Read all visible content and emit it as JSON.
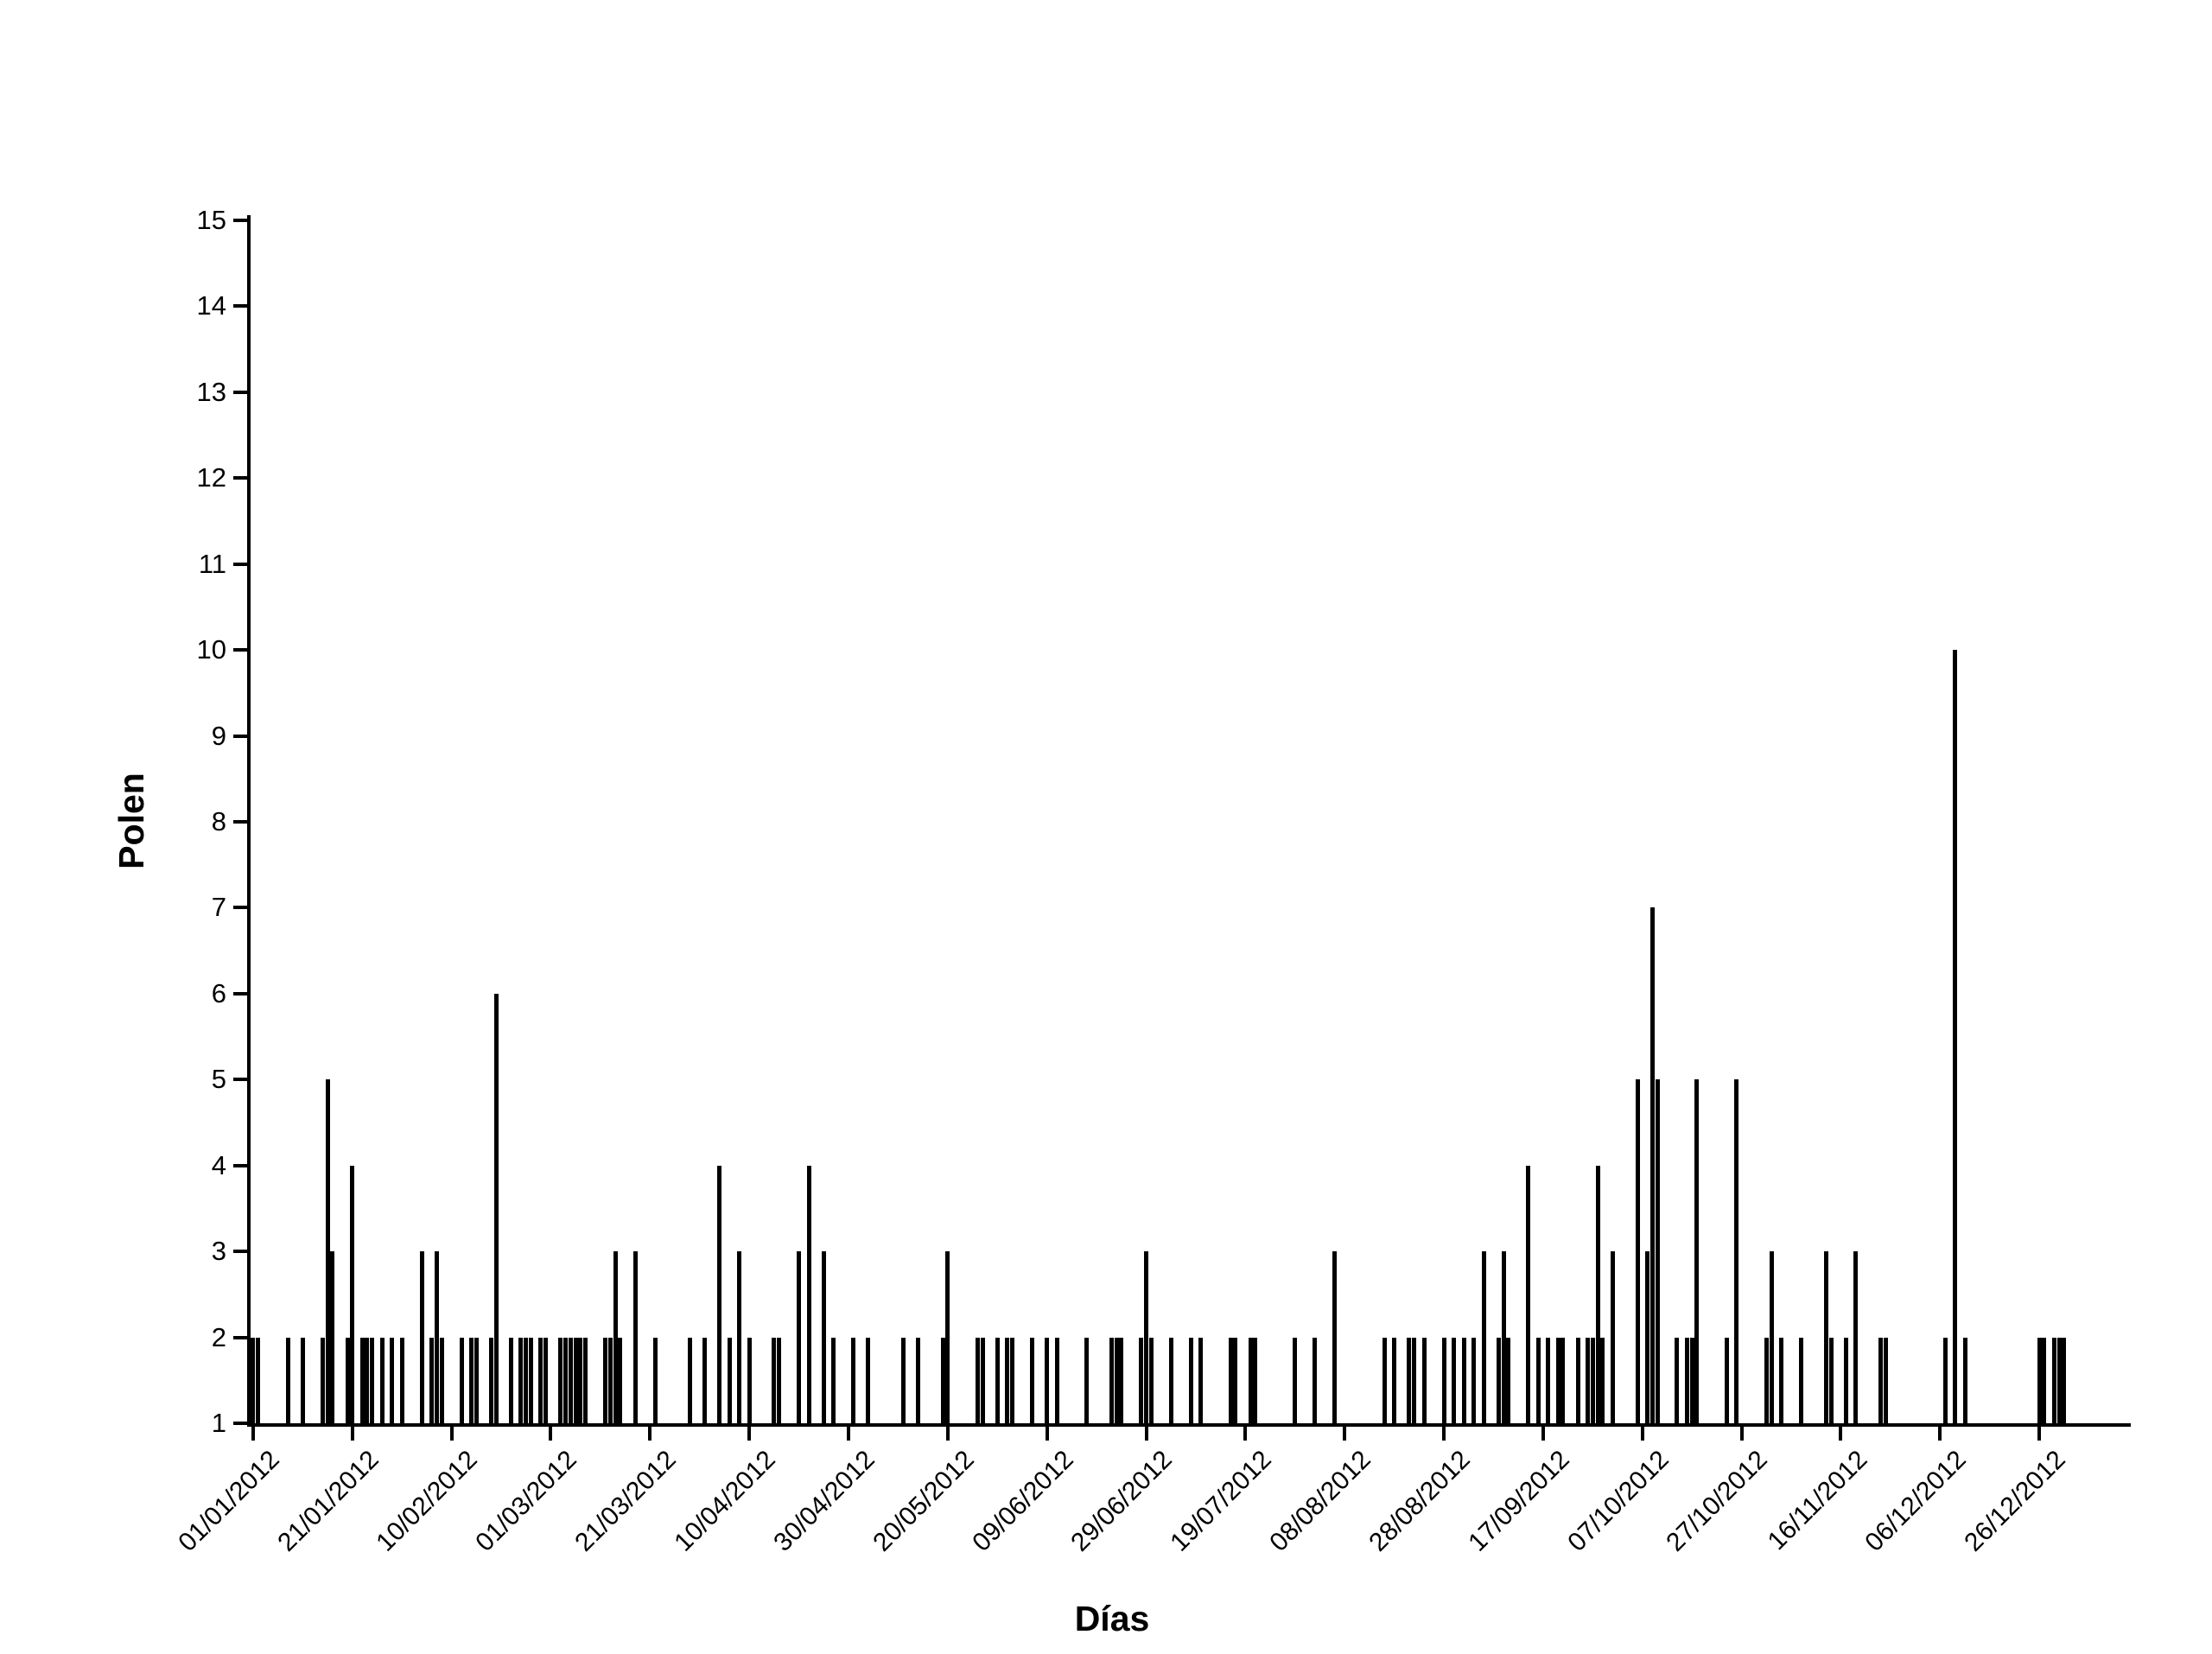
{
  "chart_data": {
    "type": "bar",
    "title": "",
    "xlabel": "Días",
    "ylabel": "Polen",
    "ylim": [
      1,
      15
    ],
    "grid": false,
    "legend": "none",
    "bar_color": "#000000",
    "background_color": "#ffffff",
    "yticks": [
      1,
      2,
      3,
      4,
      5,
      6,
      7,
      8,
      9,
      10,
      11,
      12,
      13,
      14,
      15
    ],
    "xticks": [
      {
        "day": 1,
        "label": "01/01/2012"
      },
      {
        "day": 21,
        "label": "21/01/2012"
      },
      {
        "day": 41,
        "label": "10/02/2012"
      },
      {
        "day": 61,
        "label": "01/03/2012"
      },
      {
        "day": 81,
        "label": "21/03/2012"
      },
      {
        "day": 101,
        "label": "10/04/2012"
      },
      {
        "day": 121,
        "label": "30/04/2012"
      },
      {
        "day": 141,
        "label": "20/05/2012"
      },
      {
        "day": 161,
        "label": "09/06/2012"
      },
      {
        "day": 181,
        "label": "29/06/2012"
      },
      {
        "day": 201,
        "label": "19/07/2012"
      },
      {
        "day": 221,
        "label": "08/08/2012"
      },
      {
        "day": 241,
        "label": "28/08/2012"
      },
      {
        "day": 261,
        "label": "17/09/2012"
      },
      {
        "day": 281,
        "label": "07/10/2012"
      },
      {
        "day": 301,
        "label": "27/10/2012"
      },
      {
        "day": 321,
        "label": "16/11/2012"
      },
      {
        "day": 341,
        "label": "06/12/2012"
      },
      {
        "day": 361,
        "label": "26/12/2012"
      }
    ],
    "x_domain_days": [
      1,
      366
    ],
    "points": [
      {
        "date": "01/01/2012",
        "day": 1,
        "value": 2
      },
      {
        "date": "02/01/2012",
        "day": 2,
        "value": 2
      },
      {
        "date": "08/01/2012",
        "day": 8,
        "value": 2
      },
      {
        "date": "11/01/2012",
        "day": 11,
        "value": 2
      },
      {
        "date": "15/01/2012",
        "day": 15,
        "value": 2
      },
      {
        "date": "16/01/2012",
        "day": 16,
        "value": 5
      },
      {
        "date": "17/01/2012",
        "day": 17,
        "value": 3
      },
      {
        "date": "20/01/2012",
        "day": 20,
        "value": 2
      },
      {
        "date": "21/01/2012",
        "day": 21,
        "value": 4
      },
      {
        "date": "23/01/2012",
        "day": 23,
        "value": 2
      },
      {
        "date": "24/01/2012",
        "day": 24,
        "value": 2
      },
      {
        "date": "25/01/2012",
        "day": 25,
        "value": 2
      },
      {
        "date": "27/01/2012",
        "day": 27,
        "value": 2
      },
      {
        "date": "29/01/2012",
        "day": 29,
        "value": 2
      },
      {
        "date": "31/01/2012",
        "day": 31,
        "value": 2
      },
      {
        "date": "04/02/2012",
        "day": 35,
        "value": 3
      },
      {
        "date": "06/02/2012",
        "day": 37,
        "value": 2
      },
      {
        "date": "07/02/2012",
        "day": 38,
        "value": 3
      },
      {
        "date": "08/02/2012",
        "day": 39,
        "value": 2
      },
      {
        "date": "12/02/2012",
        "day": 43,
        "value": 2
      },
      {
        "date": "14/02/2012",
        "day": 45,
        "value": 2
      },
      {
        "date": "15/02/2012",
        "day": 46,
        "value": 2
      },
      {
        "date": "18/02/2012",
        "day": 49,
        "value": 2
      },
      {
        "date": "19/02/2012",
        "day": 50,
        "value": 6
      },
      {
        "date": "22/02/2012",
        "day": 53,
        "value": 2
      },
      {
        "date": "24/02/2012",
        "day": 55,
        "value": 2
      },
      {
        "date": "25/02/2012",
        "day": 56,
        "value": 2
      },
      {
        "date": "26/02/2012",
        "day": 57,
        "value": 2
      },
      {
        "date": "28/02/2012",
        "day": 59,
        "value": 2
      },
      {
        "date": "29/02/2012",
        "day": 60,
        "value": 2
      },
      {
        "date": "03/03/2012",
        "day": 63,
        "value": 2
      },
      {
        "date": "04/03/2012",
        "day": 64,
        "value": 2
      },
      {
        "date": "05/03/2012",
        "day": 65,
        "value": 2
      },
      {
        "date": "06/03/2012",
        "day": 66,
        "value": 2
      },
      {
        "date": "07/03/2012",
        "day": 67,
        "value": 2
      },
      {
        "date": "08/03/2012",
        "day": 68,
        "value": 2
      },
      {
        "date": "12/03/2012",
        "day": 72,
        "value": 2
      },
      {
        "date": "13/03/2012",
        "day": 73,
        "value": 2
      },
      {
        "date": "14/03/2012",
        "day": 74,
        "value": 3
      },
      {
        "date": "15/03/2012",
        "day": 75,
        "value": 2
      },
      {
        "date": "18/03/2012",
        "day": 78,
        "value": 3
      },
      {
        "date": "22/03/2012",
        "day": 82,
        "value": 2
      },
      {
        "date": "29/03/2012",
        "day": 89,
        "value": 2
      },
      {
        "date": "01/04/2012",
        "day": 92,
        "value": 2
      },
      {
        "date": "04/04/2012",
        "day": 95,
        "value": 4
      },
      {
        "date": "06/04/2012",
        "day": 97,
        "value": 2
      },
      {
        "date": "08/04/2012",
        "day": 99,
        "value": 3
      },
      {
        "date": "10/04/2012",
        "day": 101,
        "value": 2
      },
      {
        "date": "15/04/2012",
        "day": 106,
        "value": 2
      },
      {
        "date": "16/04/2012",
        "day": 107,
        "value": 2
      },
      {
        "date": "20/04/2012",
        "day": 111,
        "value": 3
      },
      {
        "date": "22/04/2012",
        "day": 113,
        "value": 4
      },
      {
        "date": "25/04/2012",
        "day": 116,
        "value": 3
      },
      {
        "date": "27/04/2012",
        "day": 118,
        "value": 2
      },
      {
        "date": "01/05/2012",
        "day": 122,
        "value": 2
      },
      {
        "date": "04/05/2012",
        "day": 125,
        "value": 2
      },
      {
        "date": "11/05/2012",
        "day": 132,
        "value": 2
      },
      {
        "date": "14/05/2012",
        "day": 135,
        "value": 2
      },
      {
        "date": "19/05/2012",
        "day": 140,
        "value": 2
      },
      {
        "date": "20/05/2012",
        "day": 141,
        "value": 3
      },
      {
        "date": "26/05/2012",
        "day": 147,
        "value": 2
      },
      {
        "date": "27/05/2012",
        "day": 148,
        "value": 2
      },
      {
        "date": "30/05/2012",
        "day": 151,
        "value": 2
      },
      {
        "date": "01/06/2012",
        "day": 153,
        "value": 2
      },
      {
        "date": "02/06/2012",
        "day": 154,
        "value": 2
      },
      {
        "date": "06/06/2012",
        "day": 158,
        "value": 2
      },
      {
        "date": "09/06/2012",
        "day": 161,
        "value": 2
      },
      {
        "date": "11/06/2012",
        "day": 163,
        "value": 2
      },
      {
        "date": "17/06/2012",
        "day": 169,
        "value": 2
      },
      {
        "date": "22/06/2012",
        "day": 174,
        "value": 2
      },
      {
        "date": "23/06/2012",
        "day": 175,
        "value": 2
      },
      {
        "date": "24/06/2012",
        "day": 176,
        "value": 2
      },
      {
        "date": "28/06/2012",
        "day": 180,
        "value": 2
      },
      {
        "date": "29/06/2012",
        "day": 181,
        "value": 3
      },
      {
        "date": "30/06/2012",
        "day": 182,
        "value": 2
      },
      {
        "date": "04/07/2012",
        "day": 186,
        "value": 2
      },
      {
        "date": "08/07/2012",
        "day": 190,
        "value": 2
      },
      {
        "date": "10/07/2012",
        "day": 192,
        "value": 2
      },
      {
        "date": "16/07/2012",
        "day": 198,
        "value": 2
      },
      {
        "date": "17/07/2012",
        "day": 199,
        "value": 2
      },
      {
        "date": "20/07/2012",
        "day": 202,
        "value": 2
      },
      {
        "date": "21/07/2012",
        "day": 203,
        "value": 2
      },
      {
        "date": "29/07/2012",
        "day": 211,
        "value": 2
      },
      {
        "date": "02/08/2012",
        "day": 215,
        "value": 2
      },
      {
        "date": "06/08/2012",
        "day": 219,
        "value": 3
      },
      {
        "date": "16/08/2012",
        "day": 229,
        "value": 2
      },
      {
        "date": "18/08/2012",
        "day": 231,
        "value": 2
      },
      {
        "date": "21/08/2012",
        "day": 234,
        "value": 2
      },
      {
        "date": "22/08/2012",
        "day": 235,
        "value": 2
      },
      {
        "date": "24/08/2012",
        "day": 237,
        "value": 2
      },
      {
        "date": "28/08/2012",
        "day": 241,
        "value": 2
      },
      {
        "date": "30/08/2012",
        "day": 243,
        "value": 2
      },
      {
        "date": "01/09/2012",
        "day": 245,
        "value": 2
      },
      {
        "date": "03/09/2012",
        "day": 247,
        "value": 2
      },
      {
        "date": "05/09/2012",
        "day": 249,
        "value": 3
      },
      {
        "date": "08/09/2012",
        "day": 252,
        "value": 2
      },
      {
        "date": "09/09/2012",
        "day": 253,
        "value": 3
      },
      {
        "date": "10/09/2012",
        "day": 254,
        "value": 2
      },
      {
        "date": "14/09/2012",
        "day": 258,
        "value": 4
      },
      {
        "date": "16/09/2012",
        "day": 260,
        "value": 2
      },
      {
        "date": "18/09/2012",
        "day": 262,
        "value": 2
      },
      {
        "date": "20/09/2012",
        "day": 264,
        "value": 2
      },
      {
        "date": "21/09/2012",
        "day": 265,
        "value": 2
      },
      {
        "date": "24/09/2012",
        "day": 268,
        "value": 2
      },
      {
        "date": "26/09/2012",
        "day": 270,
        "value": 2
      },
      {
        "date": "27/09/2012",
        "day": 271,
        "value": 2
      },
      {
        "date": "28/09/2012",
        "day": 272,
        "value": 4
      },
      {
        "date": "29/09/2012",
        "day": 273,
        "value": 2
      },
      {
        "date": "01/10/2012",
        "day": 275,
        "value": 3
      },
      {
        "date": "06/10/2012",
        "day": 280,
        "value": 5
      },
      {
        "date": "08/10/2012",
        "day": 282,
        "value": 3
      },
      {
        "date": "09/10/2012",
        "day": 283,
        "value": 7
      },
      {
        "date": "10/10/2012",
        "day": 284,
        "value": 5
      },
      {
        "date": "14/10/2012",
        "day": 288,
        "value": 2
      },
      {
        "date": "16/10/2012",
        "day": 290,
        "value": 2
      },
      {
        "date": "17/10/2012",
        "day": 291,
        "value": 2
      },
      {
        "date": "18/10/2012",
        "day": 292,
        "value": 5
      },
      {
        "date": "24/10/2012",
        "day": 298,
        "value": 2
      },
      {
        "date": "26/10/2012",
        "day": 300,
        "value": 5
      },
      {
        "date": "01/11/2012",
        "day": 306,
        "value": 2
      },
      {
        "date": "02/11/2012",
        "day": 307,
        "value": 3
      },
      {
        "date": "04/11/2012",
        "day": 309,
        "value": 2
      },
      {
        "date": "08/11/2012",
        "day": 313,
        "value": 2
      },
      {
        "date": "13/11/2012",
        "day": 318,
        "value": 3
      },
      {
        "date": "14/11/2012",
        "day": 319,
        "value": 2
      },
      {
        "date": "17/11/2012",
        "day": 322,
        "value": 2
      },
      {
        "date": "19/11/2012",
        "day": 324,
        "value": 3
      },
      {
        "date": "24/11/2012",
        "day": 329,
        "value": 2
      },
      {
        "date": "25/11/2012",
        "day": 330,
        "value": 2
      },
      {
        "date": "07/12/2012",
        "day": 342,
        "value": 2
      },
      {
        "date": "09/12/2012",
        "day": 344,
        "value": 10
      },
      {
        "date": "11/12/2012",
        "day": 346,
        "value": 2
      },
      {
        "date": "26/12/2012",
        "day": 361,
        "value": 2
      },
      {
        "date": "27/12/2012",
        "day": 362,
        "value": 2
      },
      {
        "date": "29/12/2012",
        "day": 364,
        "value": 2
      },
      {
        "date": "30/12/2012",
        "day": 365,
        "value": 2
      },
      {
        "date": "31/12/2012",
        "day": 366,
        "value": 2
      }
    ]
  }
}
